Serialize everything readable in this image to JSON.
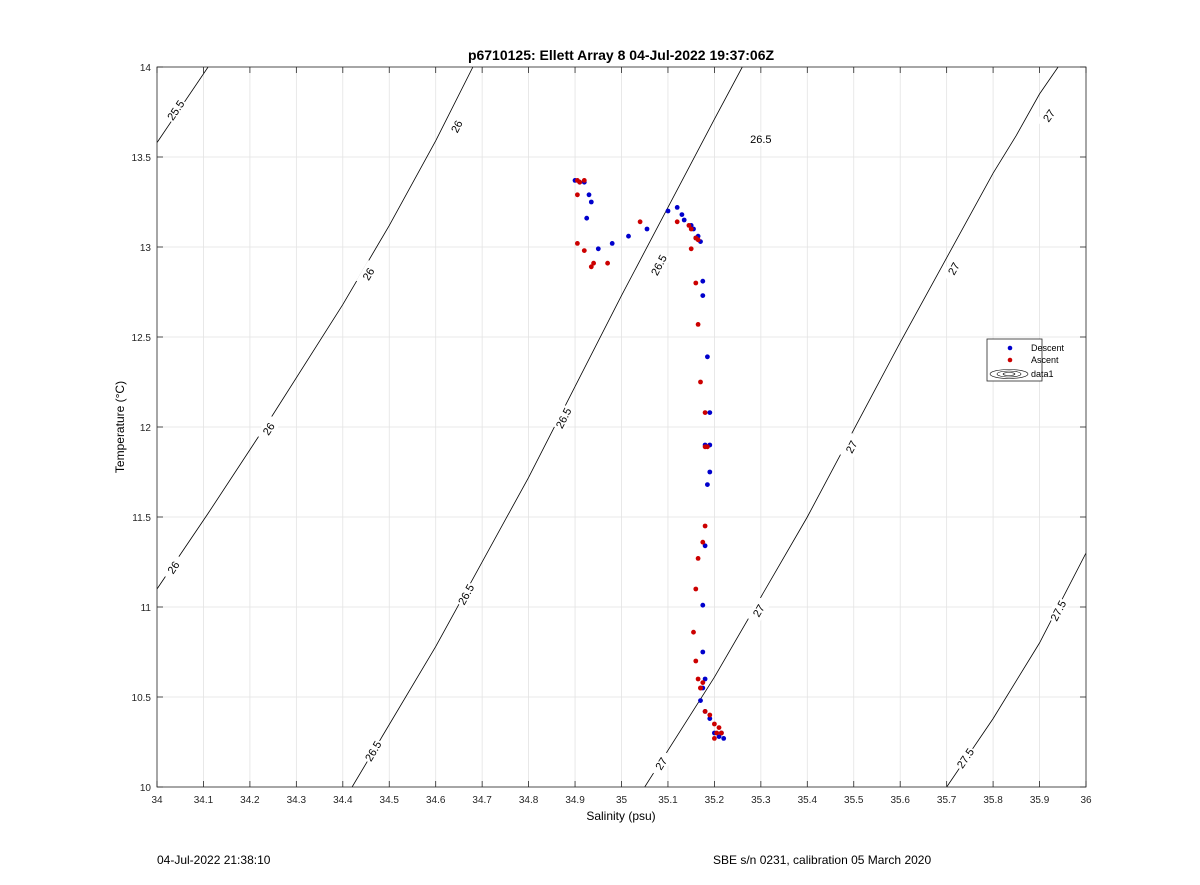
{
  "footer": {
    "timestamp": "04-Jul-2022 21:38:10",
    "calibration": "SBE s/n 0231, calibration 05 March 2020"
  },
  "chart_data": {
    "type": "scatter",
    "title": "p6710125: Ellett Array 8 04-Jul-2022 19:37:06Z",
    "xlabel": "Salinity (psu)",
    "ylabel": "Temperature (°C)",
    "xlim": [
      34,
      36
    ],
    "ylim": [
      10,
      14
    ],
    "xticks": [
      34,
      34.1,
      34.2,
      34.3,
      34.4,
      34.5,
      34.6,
      34.7,
      34.8,
      34.9,
      35,
      35.1,
      35.2,
      35.3,
      35.4,
      35.5,
      35.6,
      35.7,
      35.8,
      35.9,
      36
    ],
    "yticks": [
      10,
      10.5,
      11,
      11.5,
      12,
      12.5,
      13,
      13.5,
      14
    ],
    "grid": true,
    "legend_position": "right",
    "legend": [
      "Descent",
      "Ascent",
      "data1"
    ],
    "colors": {
      "descent": "#0000cc",
      "ascent": "#cc0000",
      "contour": "#000000",
      "grid": "#e3e3e3"
    },
    "contours": [
      {
        "level": "25.5",
        "points": [
          [
            34.0,
            13.58
          ],
          [
            34.11,
            14.0
          ]
        ],
        "labels": [
          {
            "x": 34.04,
            "y": 13.76
          }
        ]
      },
      {
        "level": "26",
        "points": [
          [
            34.0,
            11.1
          ],
          [
            34.11,
            11.52
          ],
          [
            34.25,
            12.07
          ],
          [
            34.4,
            12.68
          ],
          [
            34.5,
            13.12
          ],
          [
            34.6,
            13.59
          ],
          [
            34.68,
            14.0
          ]
        ],
        "labels": [
          {
            "x": 34.035,
            "y": 11.22
          },
          {
            "x": 34.24,
            "y": 11.99
          },
          {
            "x": 34.455,
            "y": 12.85
          },
          {
            "x": 34.645,
            "y": 13.67
          }
        ]
      },
      {
        "level": "26.5",
        "points": [
          [
            34.42,
            10.0
          ],
          [
            34.6,
            10.78
          ],
          [
            34.8,
            11.72
          ],
          [
            35.0,
            12.73
          ],
          [
            35.2,
            13.71
          ],
          [
            35.26,
            14.0
          ]
        ],
        "labels": [
          {
            "x": 34.465,
            "y": 10.2
          },
          {
            "x": 34.665,
            "y": 11.07
          },
          {
            "x": 34.875,
            "y": 12.05
          },
          {
            "x": 35.08,
            "y": 12.9
          },
          {
            "x": 35.3,
            "y": 13.6
          }
        ]
      },
      {
        "level": "27",
        "points": [
          [
            35.05,
            10.0
          ],
          [
            35.2,
            10.61
          ],
          [
            35.4,
            11.5
          ],
          [
            35.6,
            12.47
          ],
          [
            35.8,
            13.41
          ],
          [
            35.85,
            13.62
          ],
          [
            35.9,
            13.85
          ],
          [
            35.94,
            14.0
          ]
        ],
        "labels": [
          {
            "x": 35.085,
            "y": 10.13
          },
          {
            "x": 35.295,
            "y": 10.98
          },
          {
            "x": 35.495,
            "y": 11.89
          },
          {
            "x": 35.715,
            "y": 12.88
          },
          {
            "x": 35.92,
            "y": 13.73
          }
        ]
      },
      {
        "level": "27.5",
        "points": [
          [
            35.7,
            10.0
          ],
          [
            35.8,
            10.38
          ],
          [
            35.9,
            10.8
          ],
          [
            36.0,
            11.3
          ]
        ],
        "labels": [
          {
            "x": 35.74,
            "y": 10.16
          },
          {
            "x": 35.94,
            "y": 10.98
          }
        ]
      }
    ],
    "series": [
      {
        "name": "Descent",
        "x": [
          34.9,
          34.91,
          34.92,
          34.93,
          34.935,
          34.925,
          34.95,
          34.98,
          35.015,
          35.055,
          35.1,
          35.12,
          35.13,
          35.135,
          35.15,
          35.155,
          35.16,
          35.165,
          35.17,
          35.175,
          35.175,
          35.185,
          35.19,
          35.18,
          35.19,
          35.19,
          35.185,
          35.18,
          35.175,
          35.175,
          35.18,
          35.175,
          35.17,
          35.18,
          35.19,
          35.2,
          35.21,
          35.215,
          35.22
        ],
        "y": [
          13.37,
          13.36,
          13.36,
          13.29,
          13.25,
          13.16,
          12.99,
          13.02,
          13.06,
          13.1,
          13.2,
          13.22,
          13.18,
          13.15,
          13.12,
          13.1,
          13.05,
          13.06,
          13.03,
          12.81,
          12.73,
          12.39,
          12.08,
          11.9,
          11.9,
          11.75,
          11.68,
          11.34,
          11.01,
          10.75,
          10.6,
          10.55,
          10.48,
          10.42,
          10.38,
          10.3,
          10.28,
          10.3,
          10.27
        ]
      },
      {
        "name": "Ascent",
        "x": [
          34.905,
          34.91,
          34.92,
          34.905,
          34.905,
          34.92,
          34.94,
          34.935,
          34.97,
          35.04,
          35.12,
          35.145,
          35.15,
          35.16,
          35.165,
          35.15,
          35.16,
          35.165,
          35.17,
          35.18,
          35.185,
          35.18,
          35.18,
          35.175,
          35.165,
          35.16,
          35.155,
          35.16,
          35.165,
          35.17,
          35.175,
          35.17,
          35.18,
          35.19,
          35.2,
          35.205,
          35.21,
          35.215,
          35.2
        ],
        "y": [
          13.37,
          13.36,
          13.37,
          13.29,
          13.02,
          12.98,
          12.91,
          12.89,
          12.91,
          13.14,
          13.14,
          13.12,
          13.1,
          13.05,
          13.04,
          12.99,
          12.8,
          12.57,
          12.25,
          12.08,
          11.89,
          11.89,
          11.45,
          11.36,
          11.27,
          11.1,
          10.86,
          10.7,
          10.6,
          10.55,
          10.58,
          10.55,
          10.42,
          10.4,
          10.35,
          10.3,
          10.33,
          10.3,
          10.27
        ]
      }
    ]
  }
}
